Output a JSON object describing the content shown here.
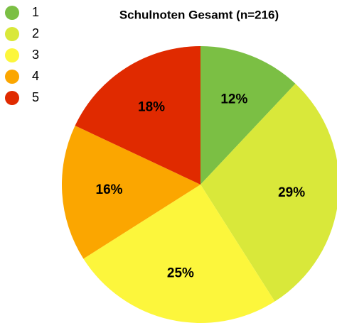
{
  "chart_data": {
    "type": "pie",
    "title": "Schulnoten Gesamt (n=216)",
    "categories": [
      "1",
      "2",
      "3",
      "4",
      "5"
    ],
    "values": [
      12,
      29,
      25,
      16,
      18
    ],
    "value_labels": [
      "12%",
      "29%",
      "25%",
      "16%",
      "18%"
    ],
    "colors": [
      "#7bbf44",
      "#d9e83a",
      "#fcf63c",
      "#fba600",
      "#e02a00"
    ],
    "legend": "top-left"
  }
}
